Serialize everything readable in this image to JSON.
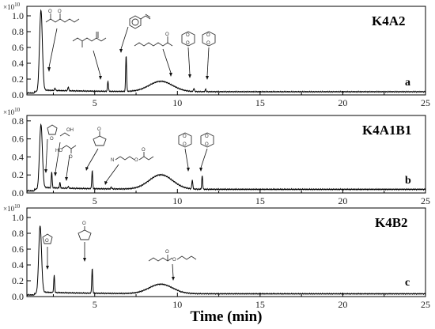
{
  "chart_data": [
    {
      "type": "line",
      "title": "K4A2",
      "panel_letter": "a",
      "exponent_label": "×10",
      "exponent_power": "10",
      "x_ticks": [
        "5",
        "10",
        "15",
        "20",
        "25"
      ],
      "y_ticks": [
        "0.0",
        "0.2",
        "0.4",
        "0.6",
        "0.8",
        "1.0"
      ],
      "xlim": [
        0.9,
        25
      ],
      "ylim": [
        0,
        1.12
      ],
      "baseline": 0.04,
      "hump": {
        "center": 9.0,
        "height": 0.13,
        "width": 1.0
      },
      "peaks": [
        {
          "x": 1.75,
          "y": 1.05
        },
        {
          "x": 2.6,
          "y": 0.07
        },
        {
          "x": 3.4,
          "y": 0.09
        },
        {
          "x": 5.8,
          "y": 0.17
        },
        {
          "x": 6.9,
          "y": 0.5
        },
        {
          "x": 11.0,
          "y": 0.08
        },
        {
          "x": 11.7,
          "y": 0.07
        }
      ]
    },
    {
      "type": "line",
      "title": "K4A1B1",
      "panel_letter": "b",
      "exponent_label": "×10",
      "exponent_power": "10",
      "x_ticks": [
        "5",
        "10",
        "15",
        "20",
        "25"
      ],
      "y_ticks": [
        "0.0",
        "0.2",
        "0.4",
        "0.6",
        "0.8"
      ],
      "xlim": [
        0.9,
        25
      ],
      "ylim": [
        0,
        0.86
      ],
      "baseline": 0.04,
      "hump": {
        "center": 9.0,
        "height": 0.16,
        "width": 1.0
      },
      "peaks": [
        {
          "x": 1.75,
          "y": 0.74
        },
        {
          "x": 2.4,
          "y": 0.22
        },
        {
          "x": 2.9,
          "y": 0.1
        },
        {
          "x": 3.4,
          "y": 0.06
        },
        {
          "x": 4.85,
          "y": 0.24
        },
        {
          "x": 6.0,
          "y": 0.06
        },
        {
          "x": 10.9,
          "y": 0.14
        },
        {
          "x": 11.5,
          "y": 0.19
        }
      ]
    },
    {
      "type": "line",
      "title": "K4B2",
      "panel_letter": "c",
      "exponent_label": "×10",
      "exponent_power": "10",
      "x_ticks": [
        "5",
        "10",
        "15",
        "20",
        "25"
      ],
      "y_ticks": [
        "0.0",
        "0.2",
        "0.4",
        "0.6",
        "0.8",
        "1.0"
      ],
      "xlim": [
        0.9,
        25
      ],
      "ylim": [
        0,
        1.12
      ],
      "xlabel": "Time (min)",
      "baseline": 0.035,
      "hump": {
        "center": 9.0,
        "height": 0.12,
        "width": 1.0
      },
      "peaks": [
        {
          "x": 1.7,
          "y": 0.87
        },
        {
          "x": 2.55,
          "y": 0.25
        },
        {
          "x": 4.85,
          "y": 0.35
        },
        {
          "x": 10.2,
          "y": 0.03
        }
      ]
    }
  ]
}
